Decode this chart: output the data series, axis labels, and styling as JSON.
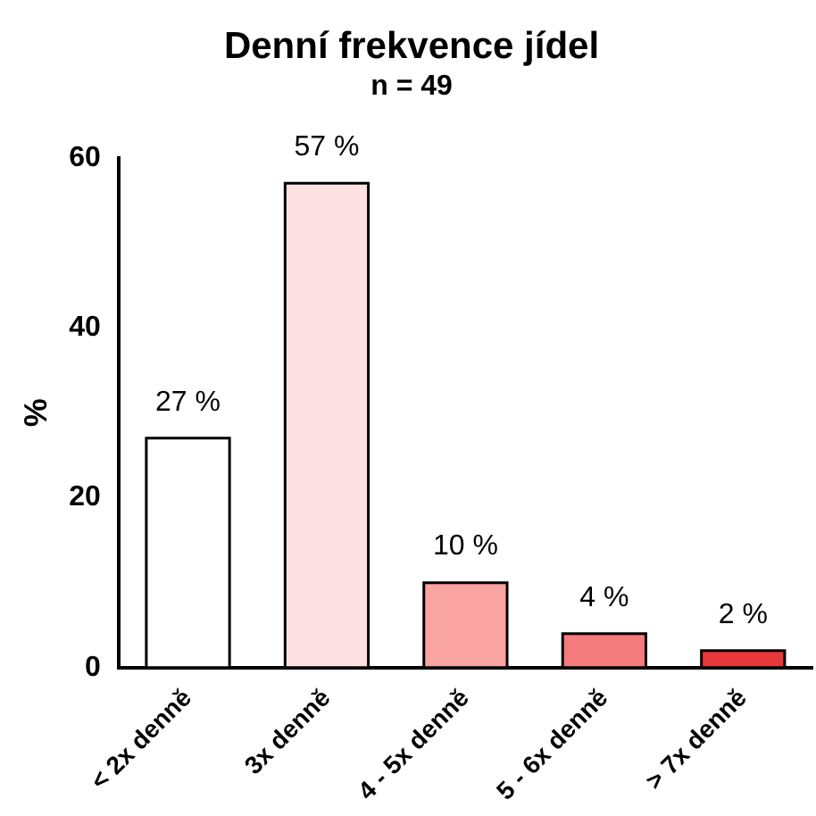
{
  "chart_data": {
    "type": "bar",
    "title": "Denní frekvence jídel",
    "subtitle": "n = 49",
    "ylabel": "%",
    "categories": [
      "< 2x denně",
      "3x denně",
      "4 - 5x denně",
      "5 - 6x denně",
      "> 7x denně"
    ],
    "values": [
      27,
      57,
      10,
      4,
      2
    ],
    "value_labels": [
      "27 %",
      "57 %",
      "10 %",
      "4 %",
      "2 %"
    ],
    "colors": [
      "#ffffff",
      "#fde0e2",
      "#f9a3a3",
      "#f47b7b",
      "#e8383a"
    ],
    "ylim": [
      0,
      60
    ],
    "yticks": [
      0,
      20,
      40,
      60
    ],
    "grid": false,
    "legend": false
  }
}
